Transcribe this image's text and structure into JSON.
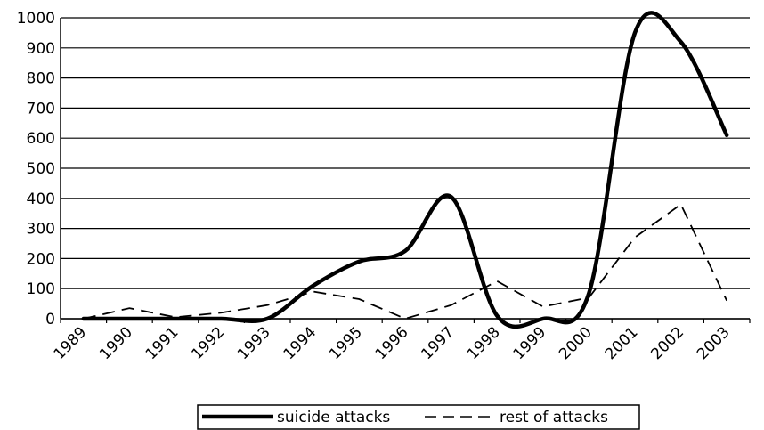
{
  "chart_data": {
    "type": "line",
    "categories": [
      "1989",
      "1990",
      "1991",
      "1992",
      "1993",
      "1994",
      "1995",
      "1996",
      "1997",
      "1998",
      "1999",
      "2000",
      "2001",
      "2002",
      "2003"
    ],
    "series": [
      {
        "name": "suicide attacks",
        "style": "solid-thick",
        "color": "#000000",
        "values": [
          0,
          0,
          0,
          0,
          0,
          110,
          190,
          225,
          405,
          10,
          0,
          85,
          950,
          920,
          610
        ]
      },
      {
        "name": "rest of attacks",
        "style": "dashed",
        "color": "#000000",
        "values": [
          0,
          35,
          5,
          20,
          45,
          90,
          65,
          0,
          45,
          125,
          40,
          70,
          270,
          380,
          60
        ]
      }
    ],
    "ylim": [
      0,
      1000
    ],
    "yticks": [
      0,
      100,
      200,
      300,
      400,
      500,
      600,
      700,
      800,
      900,
      1000
    ],
    "grid": true,
    "legend_position": "bottom",
    "title": "",
    "xlabel": "",
    "ylabel": ""
  }
}
